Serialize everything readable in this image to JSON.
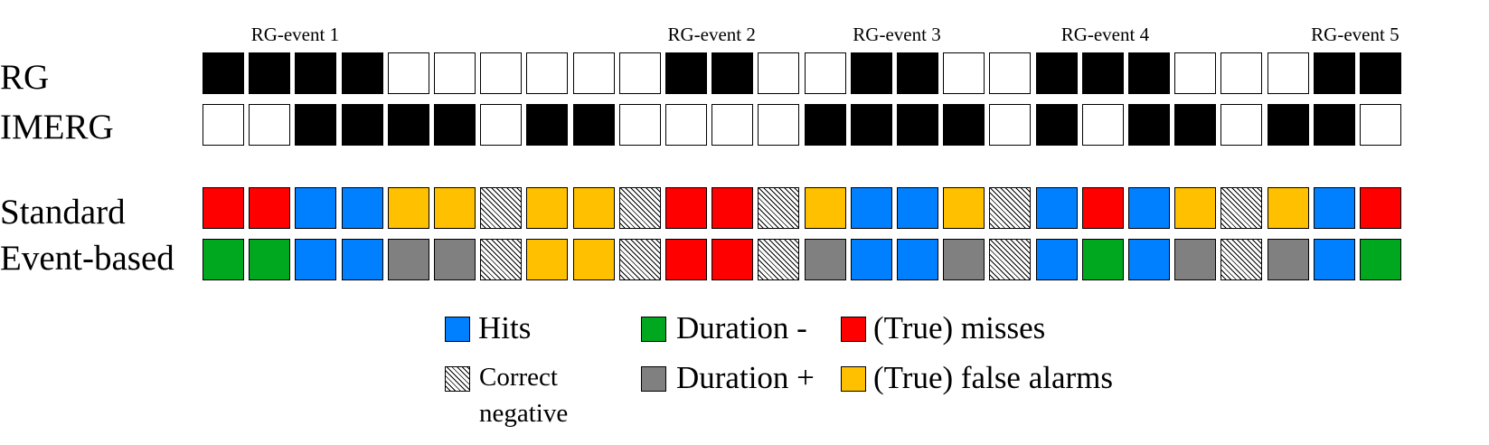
{
  "row_labels": {
    "rg": "RG",
    "imerg": "IMERG",
    "standard": "Standard",
    "event": "Event-based"
  },
  "event_labels": [
    {
      "text": "RG-event 1",
      "col": 2
    },
    {
      "text": "RG-event 2",
      "col": 11
    },
    {
      "text": "RG-event 3",
      "col": 15
    },
    {
      "text": "RG-event 4",
      "col": 19.5
    },
    {
      "text": "RG-event 5",
      "col": 24.9
    }
  ],
  "colors": {
    "B": "#000000",
    "W": "#ffffff",
    "hit": "#0080ff",
    "miss": "#ff0000",
    "fa": "#ffc000",
    "dminus": "#00a820",
    "dplus": "#808080"
  },
  "rows": {
    "rg": [
      "B",
      "B",
      "B",
      "B",
      "W",
      "W",
      "W",
      "W",
      "W",
      "W",
      "B",
      "B",
      "W",
      "W",
      "B",
      "B",
      "W",
      "W",
      "B",
      "B",
      "B",
      "W",
      "W",
      "W",
      "B",
      "B"
    ],
    "imerg": [
      "W",
      "W",
      "B",
      "B",
      "B",
      "B",
      "W",
      "B",
      "B",
      "W",
      "W",
      "W",
      "W",
      "B",
      "B",
      "B",
      "B",
      "W",
      "B",
      "W",
      "B",
      "B",
      "W",
      "B",
      "B",
      "W"
    ],
    "standard": [
      "miss",
      "miss",
      "hit",
      "hit",
      "fa",
      "fa",
      "cn",
      "fa",
      "fa",
      "cn",
      "miss",
      "miss",
      "cn",
      "fa",
      "hit",
      "hit",
      "fa",
      "cn",
      "hit",
      "miss",
      "hit",
      "fa",
      "cn",
      "fa",
      "hit",
      "miss"
    ],
    "event": [
      "dminus",
      "dminus",
      "hit",
      "hit",
      "dplus",
      "dplus",
      "cn",
      "fa",
      "fa",
      "cn",
      "miss",
      "miss",
      "cn",
      "dplus",
      "hit",
      "hit",
      "dplus",
      "cn",
      "hit",
      "dminus",
      "hit",
      "dplus",
      "cn",
      "dplus",
      "hit",
      "dminus"
    ]
  },
  "legend": {
    "hits": "Hits",
    "correct_negative_1": "Correct",
    "correct_negative_2": "negative",
    "duration_minus": "Duration -",
    "duration_plus": "Duration +",
    "misses": "(True) misses",
    "false_alarms": "(True) false alarms"
  }
}
